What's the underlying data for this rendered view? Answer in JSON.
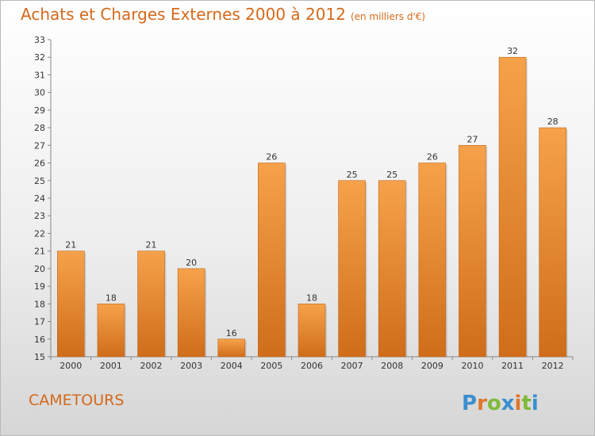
{
  "chart_data": {
    "type": "bar",
    "title": "Achats et Charges Externes 2000 à 2012",
    "unit": "(en milliers d'€)",
    "categories": [
      "2000",
      "2001",
      "2002",
      "2003",
      "2004",
      "2005",
      "2006",
      "2007",
      "2008",
      "2009",
      "2010",
      "2011",
      "2012"
    ],
    "values": [
      21,
      18,
      21,
      20,
      16,
      26,
      18,
      25,
      25,
      26,
      27,
      32,
      28
    ],
    "ylim": [
      15,
      33
    ],
    "yticks": [
      15,
      16,
      17,
      18,
      19,
      20,
      21,
      22,
      23,
      24,
      25,
      26,
      27,
      28,
      29,
      30,
      31,
      32,
      33
    ],
    "grid": false,
    "bar_color": "#f0922f"
  },
  "footer": {
    "commune": "CAMETOURS",
    "logo_text": "Proxiti"
  },
  "colors": {
    "accent": "#d4691b",
    "bar_top": "#f6a24a",
    "bar_bottom": "#d06e1a"
  }
}
